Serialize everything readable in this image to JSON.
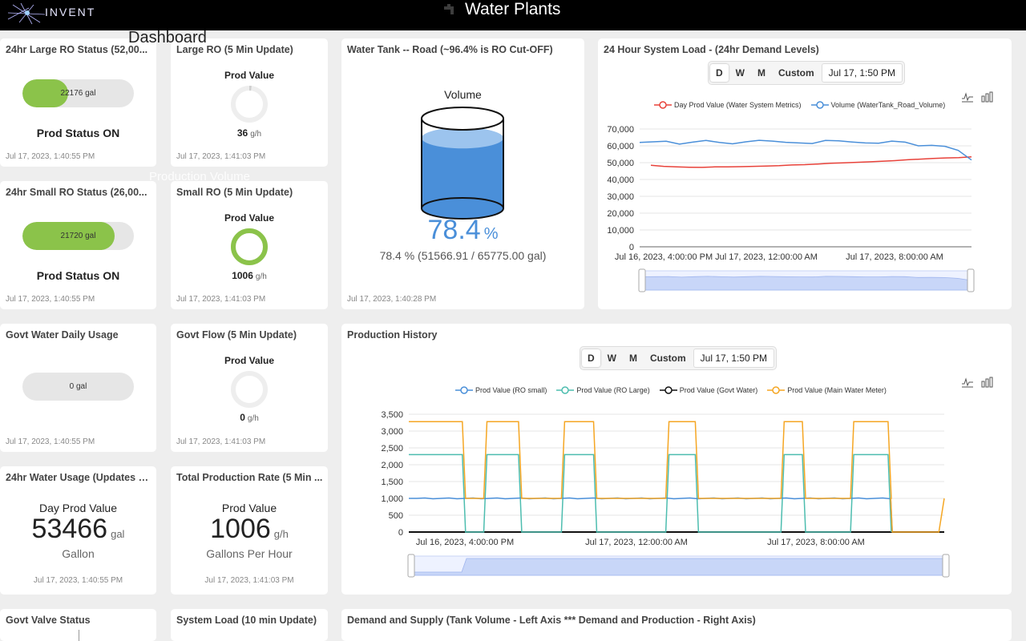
{
  "header": {
    "logo_text": "INVENT",
    "title": "Water Plants"
  },
  "overlay": {
    "dashboard_label": "Dashboard",
    "ghost_text": "Production Volume"
  },
  "cards": {
    "large_ro_status": {
      "title": "24hr Large RO Status (52,00...",
      "pill_text": "22176 gal",
      "fill_fraction": 0.41,
      "status": "Prod Status ON",
      "timestamp": "Jul 17, 2023, 1:40:55 PM"
    },
    "large_ro": {
      "title": "Large RO (5 Min Update)",
      "label": "Prod Value",
      "value": "36",
      "unit": "g/h",
      "ring_fraction": 0.02,
      "timestamp": "Jul 17, 2023, 1:41:03 PM"
    },
    "small_ro_status": {
      "title": "24hr Small RO Status (26,00...",
      "pill_text": "21720 gal",
      "fill_fraction": 0.83,
      "status": "Prod Status ON",
      "timestamp": "Jul 17, 2023, 1:40:55 PM"
    },
    "small_ro": {
      "title": "Small RO (5 Min Update)",
      "label": "Prod Value",
      "value": "1006",
      "unit": "g/h",
      "ring_fraction": 1.0,
      "timestamp": "Jul 17, 2023, 1:41:03 PM"
    },
    "govt_daily": {
      "title": "Govt Water Daily Usage",
      "pill_text": "0 gal",
      "fill_fraction": 0,
      "timestamp": "Jul 17, 2023, 1:40:55 PM"
    },
    "govt_flow": {
      "title": "Govt Flow (5 Min Update)",
      "label": "Prod Value",
      "value": "0",
      "unit": "g/h",
      "ring_fraction": 0,
      "timestamp": "Jul 17, 2023, 1:41:03 PM"
    },
    "water_usage": {
      "title": "24hr Water Usage (Updates b...",
      "label": "Day Prod Value",
      "value": "53466",
      "unit": "gal",
      "sublabel": "Gallon",
      "timestamp": "Jul 17, 2023, 1:40:55 PM"
    },
    "total_rate": {
      "title": "Total Production Rate (5 Min ...",
      "label": "Prod Value",
      "value": "1006",
      "unit": "g/h",
      "sublabel": "Gallons Per Hour",
      "timestamp": "Jul 17, 2023, 1:41:03 PM"
    },
    "govt_valve": {
      "title": "Govt Valve Status"
    },
    "system_load": {
      "title": "System Load (10 min Update)"
    },
    "demand_supply": {
      "title": "Demand and Supply (Tank Volume - Left Axis *** Demand and Production - Right Axis)"
    },
    "tank": {
      "title": "Water Tank -- Road (~96.4% is RO Cut-OFF)",
      "label": "Volume",
      "percent": "78.4",
      "percent_sign": "%",
      "fill_fraction": 0.784,
      "detail": "78.4 % (51566.91 / 65775.00 gal)",
      "timestamp": "Jul 17, 2023, 1:40:28 PM"
    }
  },
  "range_buttons": {
    "d": "D",
    "w": "W",
    "m": "M",
    "custom": "Custom",
    "date": "Jul 17, 1:50 PM"
  },
  "colors": {
    "green": "#8bc34a",
    "blue": "#4a8fd9",
    "red": "#e8423a",
    "teal": "#4dbdaf",
    "orange": "#f5a623",
    "black": "#111111"
  },
  "chart_data": [
    {
      "type": "line",
      "title": "24 Hour System Load - (24hr Demand Levels)",
      "series": [
        {
          "name": "Day Prod Value (Water System Metrics)",
          "color": "#e8423a",
          "values": [
            48500,
            47800,
            47500,
            47300,
            47200,
            47500,
            47500,
            47600,
            47800,
            48000,
            48200,
            48600,
            48800,
            49200,
            49600,
            49900,
            50200,
            50500,
            50800,
            51200,
            51700,
            52100,
            52500,
            52800,
            53000,
            53466
          ]
        },
        {
          "name": "Volume (WaterTank_Road_Volume)",
          "color": "#4a8fd9",
          "values": [
            62000,
            62400,
            62700,
            61000,
            62200,
            63200,
            62000,
            61200,
            62400,
            63300,
            62800,
            62100,
            61700,
            61400,
            63200,
            63000,
            62300,
            61700,
            61500,
            62800,
            62200,
            60000,
            60300,
            59700,
            57300,
            51567
          ]
        }
      ],
      "x_ticks": [
        "Jul 16, 2023, 4:00:00 PM",
        "Jul 17, 2023, 12:00:00 AM",
        "Jul 17, 2023, 8:00:00 AM"
      ],
      "y_ticks": [
        "70,000",
        "60,000",
        "50,000",
        "40,000",
        "30,000",
        "20,000",
        "10,000",
        "0"
      ],
      "ylim": [
        0,
        70000
      ]
    },
    {
      "type": "line",
      "title": "Production History",
      "series": [
        {
          "name": "Prod Value (RO small)",
          "color": "#4a8fd9",
          "kind": "small"
        },
        {
          "name": "Prod Value (RO Large)",
          "color": "#4dbdaf",
          "kind": "large"
        },
        {
          "name": "Prod Value (Govt Water)",
          "color": "#111111",
          "kind": "govt"
        },
        {
          "name": "Prod Value (Main Water Meter)",
          "color": "#f5a623",
          "kind": "main"
        }
      ],
      "levels": {
        "small": 1000,
        "large": 2300,
        "main": 3280,
        "govt": 0
      },
      "on_periods": [
        [
          0.0,
          0.1
        ],
        [
          0.14,
          0.205
        ],
        [
          0.285,
          0.345
        ],
        [
          0.48,
          0.535
        ],
        [
          0.695,
          0.735
        ],
        [
          0.825,
          0.895
        ]
      ],
      "drop_to_zero": [
        0.9,
        0.99
      ],
      "x_ticks": [
        "Jul 16, 2023, 4:00:00 PM",
        "Jul 17, 2023, 12:00:00 AM",
        "Jul 17, 2023, 8:00:00 AM"
      ],
      "y_ticks": [
        "3,500",
        "3,000",
        "2,500",
        "2,000",
        "1,500",
        "1,000",
        "500",
        "0"
      ],
      "ylim": [
        0,
        3500
      ]
    }
  ]
}
